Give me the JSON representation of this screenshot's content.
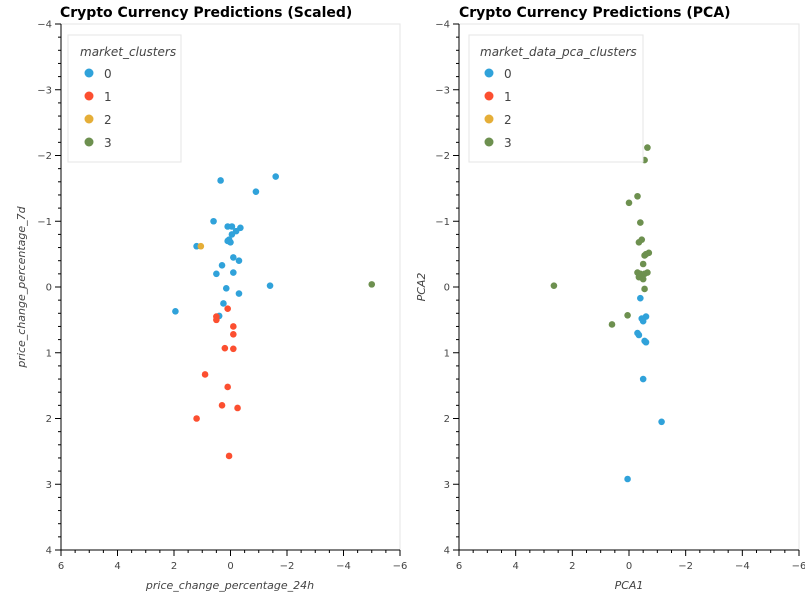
{
  "chart_data": [
    {
      "type": "scatter",
      "title": "Crypto Currency Predictions (Scaled)",
      "xlabel": "price_change_percentage_24h",
      "ylabel": "price_change_percentage_7d",
      "xlim": [
        6,
        -6
      ],
      "ylim": [
        -4,
        4
      ],
      "x_ticks": [
        6,
        4,
        2,
        0,
        -2,
        -4,
        -6
      ],
      "y_ticks": [
        -4,
        -3,
        -2,
        -1,
        0,
        1,
        2,
        3,
        4
      ],
      "grid": false,
      "legend_position": "top-left",
      "legend_title": "market_clusters",
      "series": [
        {
          "name": "0",
          "color": "#30a2da",
          "points": [
            [
              0.35,
              -1.62
            ],
            [
              -1.6,
              -1.68
            ],
            [
              -0.9,
              -1.45
            ],
            [
              0.6,
              -1.0
            ],
            [
              0.1,
              -0.92
            ],
            [
              -0.05,
              -0.92
            ],
            [
              -0.35,
              -0.9
            ],
            [
              -0.2,
              -0.85
            ],
            [
              -0.05,
              -0.8
            ],
            [
              0.05,
              -0.72
            ],
            [
              0.1,
              -0.7
            ],
            [
              0.0,
              -0.68
            ],
            [
              -0.1,
              -0.45
            ],
            [
              -0.3,
              -0.4
            ],
            [
              0.3,
              -0.33
            ],
            [
              0.5,
              -0.2
            ],
            [
              -0.1,
              -0.22
            ],
            [
              -1.4,
              -0.02
            ],
            [
              0.15,
              0.02
            ],
            [
              -0.3,
              0.1
            ],
            [
              0.25,
              0.25
            ],
            [
              1.95,
              0.37
            ],
            [
              0.4,
              0.44
            ],
            [
              1.2,
              -0.62
            ]
          ]
        },
        {
          "name": "1",
          "color": "#fc4f30",
          "points": [
            [
              0.1,
              0.33
            ],
            [
              0.5,
              0.45
            ],
            [
              0.5,
              0.5
            ],
            [
              -0.1,
              0.6
            ],
            [
              -0.1,
              0.72
            ],
            [
              0.2,
              0.93
            ],
            [
              -0.1,
              0.94
            ],
            [
              0.9,
              1.33
            ],
            [
              0.1,
              1.52
            ],
            [
              0.3,
              1.8
            ],
            [
              -0.25,
              1.84
            ],
            [
              1.2,
              2.0
            ],
            [
              0.05,
              2.57
            ]
          ]
        },
        {
          "name": "2",
          "color": "#e5ae38",
          "points": [
            [
              1.05,
              -0.62
            ]
          ]
        },
        {
          "name": "3",
          "color": "#6d904f",
          "points": [
            [
              -5.0,
              -0.04
            ]
          ]
        }
      ]
    },
    {
      "type": "scatter",
      "title": "Crypto Currency Predictions (PCA)",
      "xlabel": "PCA1",
      "ylabel": "PCA2",
      "xlim": [
        6,
        -6
      ],
      "ylim": [
        -4,
        4
      ],
      "x_ticks": [
        6,
        4,
        2,
        0,
        -2,
        -4,
        -6
      ],
      "y_ticks": [
        -4,
        -3,
        -2,
        -1,
        0,
        1,
        2,
        3,
        4
      ],
      "grid": false,
      "legend_position": "top-left",
      "legend_title": "market_data_pca_clusters",
      "series": [
        {
          "name": "0",
          "color": "#30a2da",
          "points": [
            [
              -0.4,
              0.17
            ],
            [
              -0.6,
              0.45
            ],
            [
              -0.45,
              0.48
            ],
            [
              -0.5,
              0.52
            ],
            [
              -0.3,
              0.7
            ],
            [
              -0.35,
              0.73
            ],
            [
              -0.55,
              0.82
            ],
            [
              -0.6,
              0.84
            ],
            [
              -0.5,
              1.4
            ],
            [
              -1.15,
              2.05
            ],
            [
              0.05,
              2.92
            ]
          ]
        },
        {
          "name": "1",
          "color": "#fc4f30",
          "points": []
        },
        {
          "name": "2",
          "color": "#e5ae38",
          "points": []
        },
        {
          "name": "3",
          "color": "#6d904f",
          "points": [
            [
              -0.65,
              -2.12
            ],
            [
              -0.55,
              -1.93
            ],
            [
              -0.3,
              -1.38
            ],
            [
              0.0,
              -1.28
            ],
            [
              -0.4,
              -0.98
            ],
            [
              -0.45,
              -0.72
            ],
            [
              -0.35,
              -0.68
            ],
            [
              -0.7,
              -0.52
            ],
            [
              -0.6,
              -0.5
            ],
            [
              -0.55,
              -0.48
            ],
            [
              -0.5,
              -0.35
            ],
            [
              -0.3,
              -0.22
            ],
            [
              -0.4,
              -0.2
            ],
            [
              -0.45,
              -0.18
            ],
            [
              -0.55,
              -0.2
            ],
            [
              -0.65,
              -0.22
            ],
            [
              -0.35,
              -0.15
            ],
            [
              -0.5,
              -0.12
            ],
            [
              -0.55,
              0.03
            ],
            [
              2.65,
              -0.02
            ],
            [
              0.05,
              0.43
            ],
            [
              0.6,
              0.57
            ]
          ]
        }
      ]
    }
  ]
}
